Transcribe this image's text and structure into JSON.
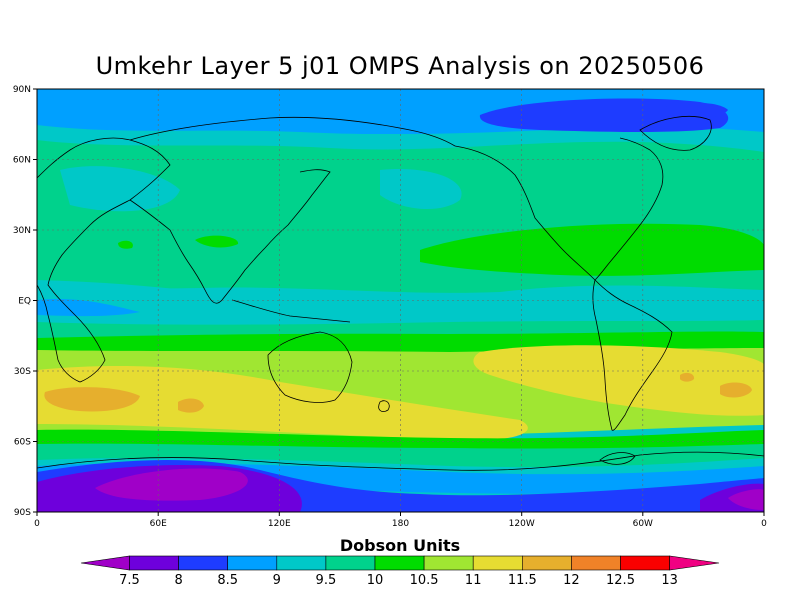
{
  "title": "Umkehr Layer 5 j01 OMPS Analysis on 20250506",
  "lat_labels": [
    "90N",
    "60N",
    "30N",
    "EQ",
    "30S",
    "60S",
    "90S"
  ],
  "lon_labels": [
    "0",
    "60E",
    "120E",
    "180",
    "120W",
    "60W",
    "0"
  ],
  "colorbar": {
    "title": "Dobson Units",
    "levels": [
      "7.5",
      "8",
      "8.5",
      "9",
      "9.5",
      "10",
      "10.5",
      "11",
      "11.5",
      "12",
      "12.5",
      "13"
    ],
    "colors": [
      "#a000c8",
      "#6e00dc",
      "#1e3cff",
      "#00a0ff",
      "#00c8c8",
      "#00d28c",
      "#00dc00",
      "#a0e632",
      "#e6dc32",
      "#e6af2d",
      "#f08228",
      "#fa0000",
      "#f00082"
    ]
  }
}
